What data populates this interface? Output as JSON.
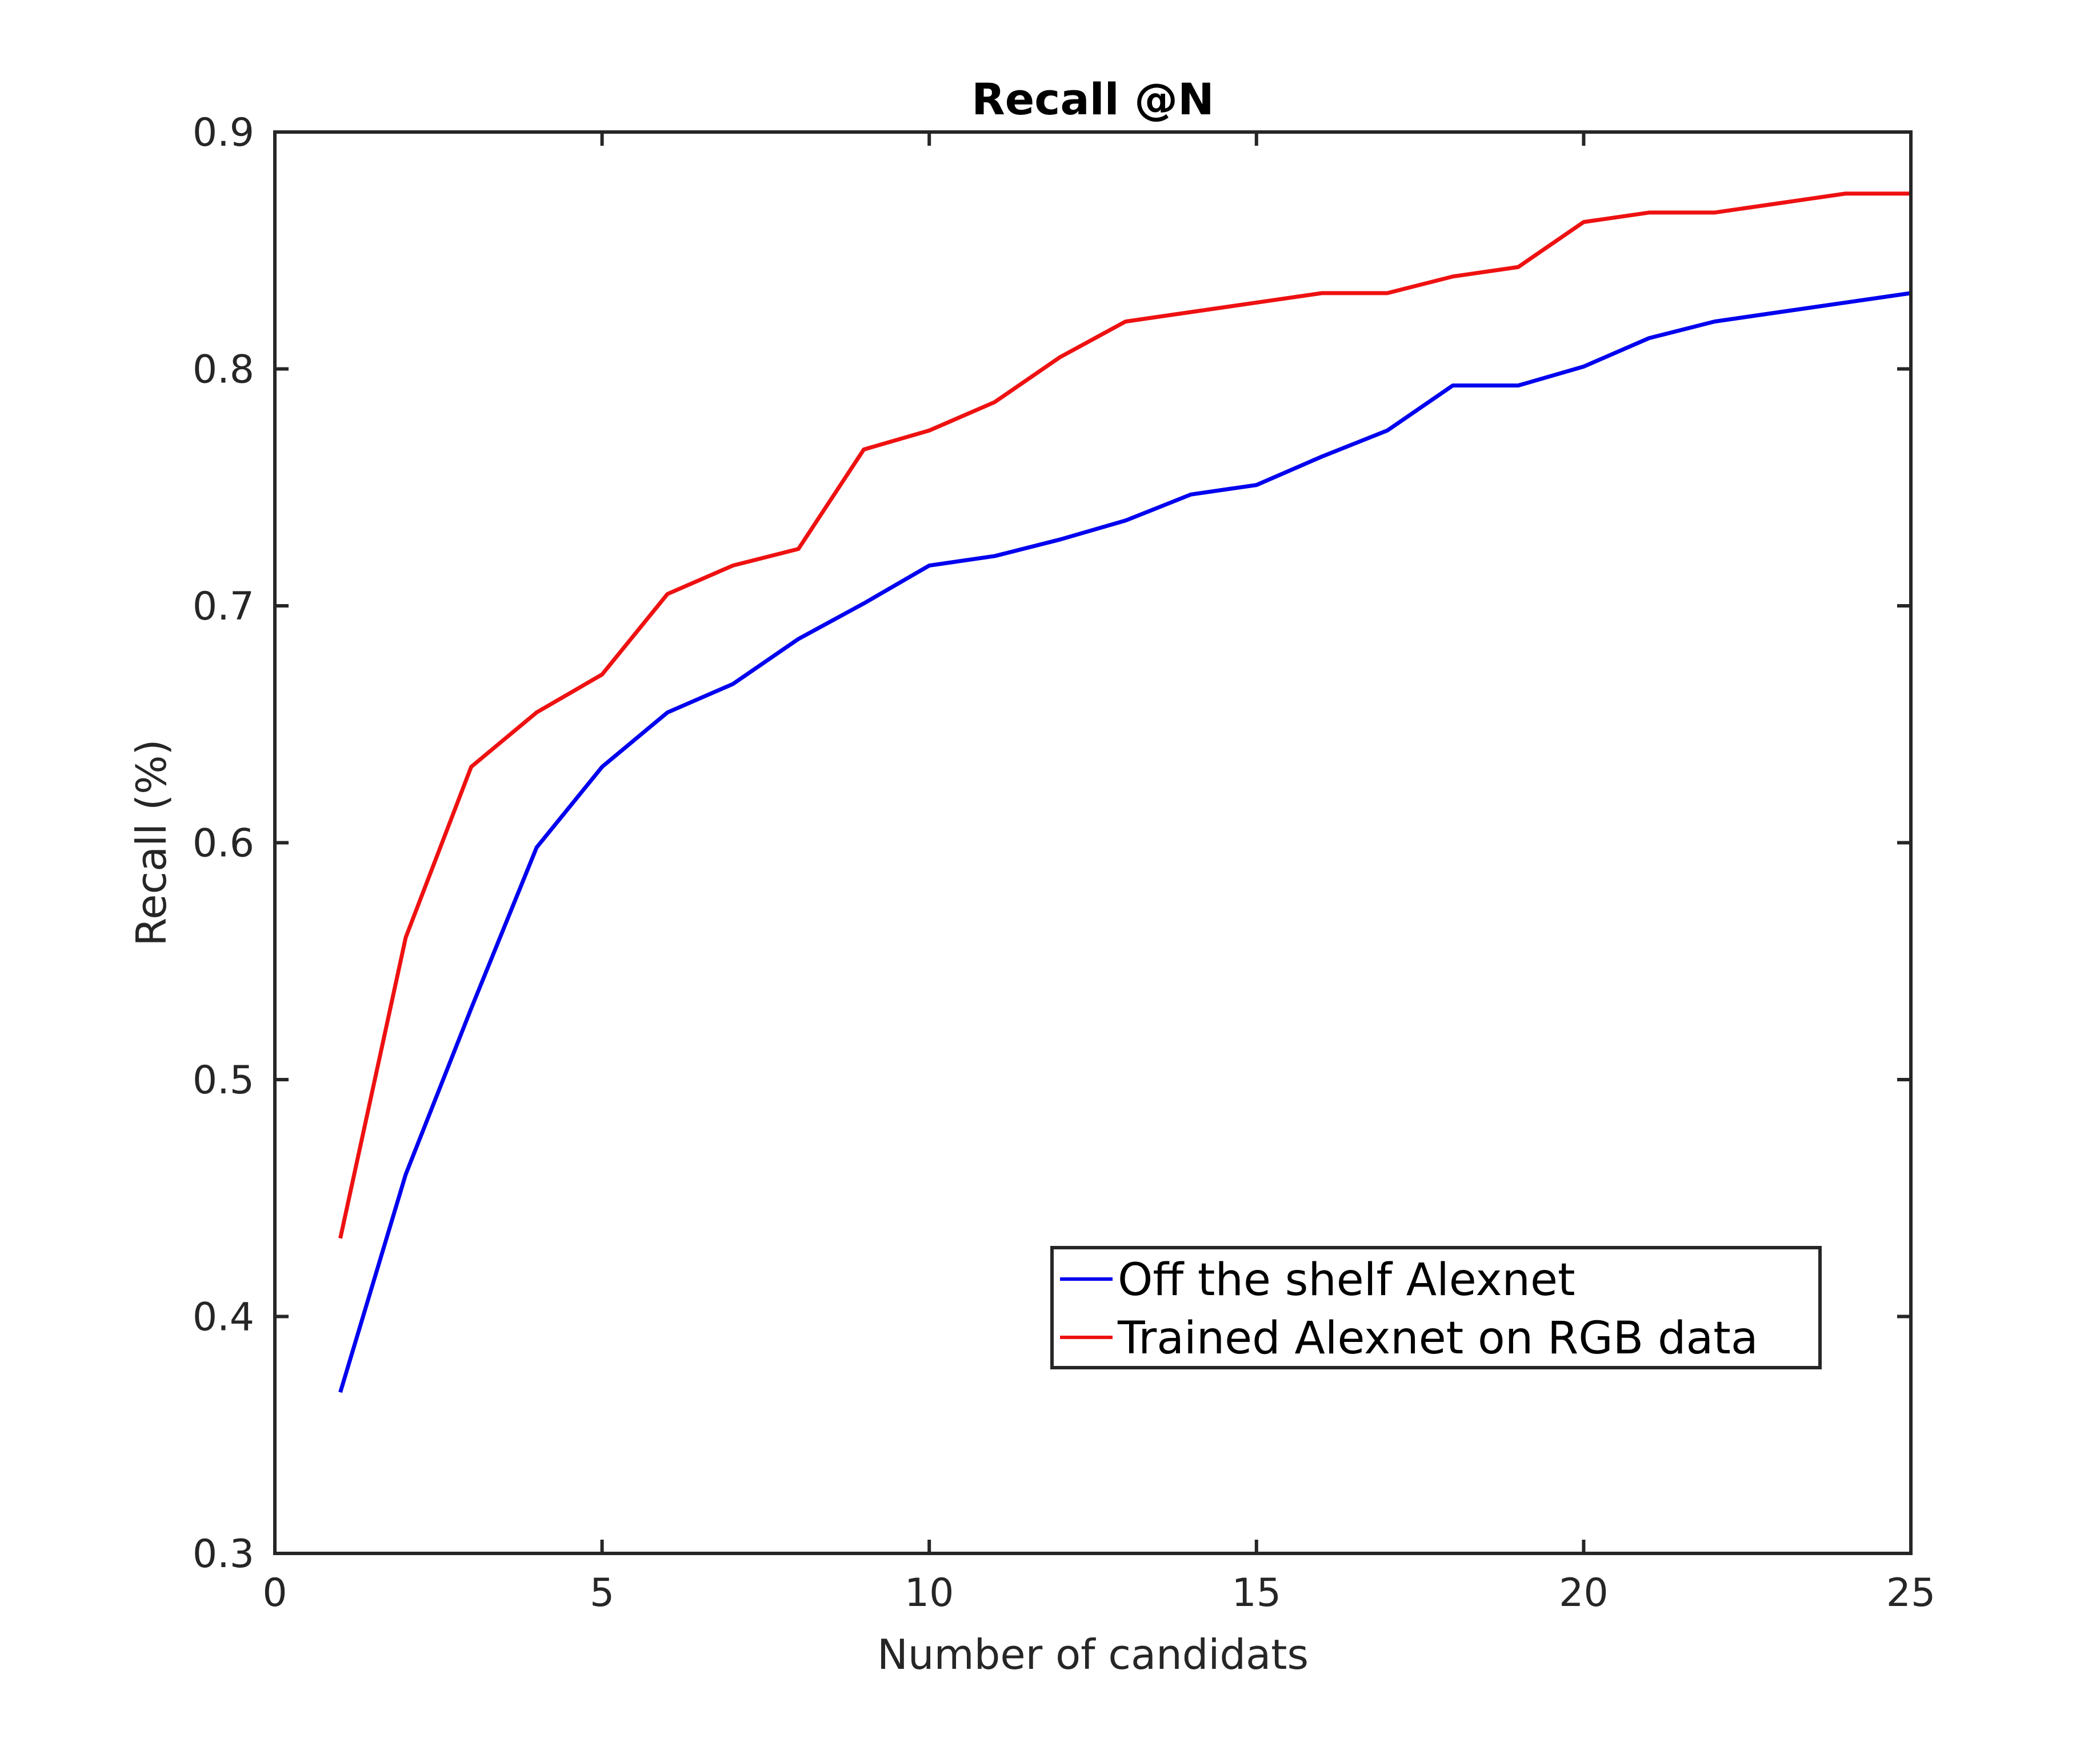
{
  "chart_data": {
    "type": "line",
    "title": "Recall @N",
    "xlabel": "Number of candidats",
    "ylabel": "Recall (%)",
    "xlim": [
      0,
      25
    ],
    "ylim": [
      0.3,
      0.9
    ],
    "xticks": [
      0,
      5,
      10,
      15,
      20,
      25
    ],
    "xtick_labels": [
      "0",
      "5",
      "10",
      "15",
      "20",
      "25"
    ],
    "yticks": [
      0.3,
      0.4,
      0.5,
      0.6,
      0.7,
      0.8,
      0.9
    ],
    "ytick_labels": [
      "0.3",
      "0.4",
      "0.5",
      "0.6",
      "0.7",
      "0.8",
      "0.9"
    ],
    "grid": false,
    "legend_position": "lower-right",
    "x": [
      1,
      2,
      3,
      4,
      5,
      6,
      7,
      8,
      9,
      10,
      11,
      12,
      13,
      14,
      15,
      16,
      17,
      18,
      19,
      20,
      21,
      22,
      23,
      24,
      25
    ],
    "series": [
      {
        "name": "Off the shelf Alexnet",
        "color": "#0000ee",
        "values": [
          0.368,
          0.46,
          0.53,
          0.598,
          0.632,
          0.655,
          0.667,
          0.686,
          0.701,
          0.717,
          0.721,
          0.728,
          0.736,
          0.747,
          0.751,
          0.763,
          0.774,
          0.793,
          0.793,
          0.801,
          0.813,
          0.82,
          0.824,
          0.828,
          0.832
        ]
      },
      {
        "name": "Trained Alexnet on RGB data",
        "color": "#ee1111",
        "values": [
          0.433,
          0.56,
          0.632,
          0.655,
          0.671,
          0.705,
          0.717,
          0.724,
          0.766,
          0.774,
          0.786,
          0.805,
          0.82,
          0.824,
          0.828,
          0.832,
          0.832,
          0.839,
          0.843,
          0.862,
          0.866,
          0.866,
          0.87,
          0.874,
          0.874
        ]
      }
    ]
  }
}
